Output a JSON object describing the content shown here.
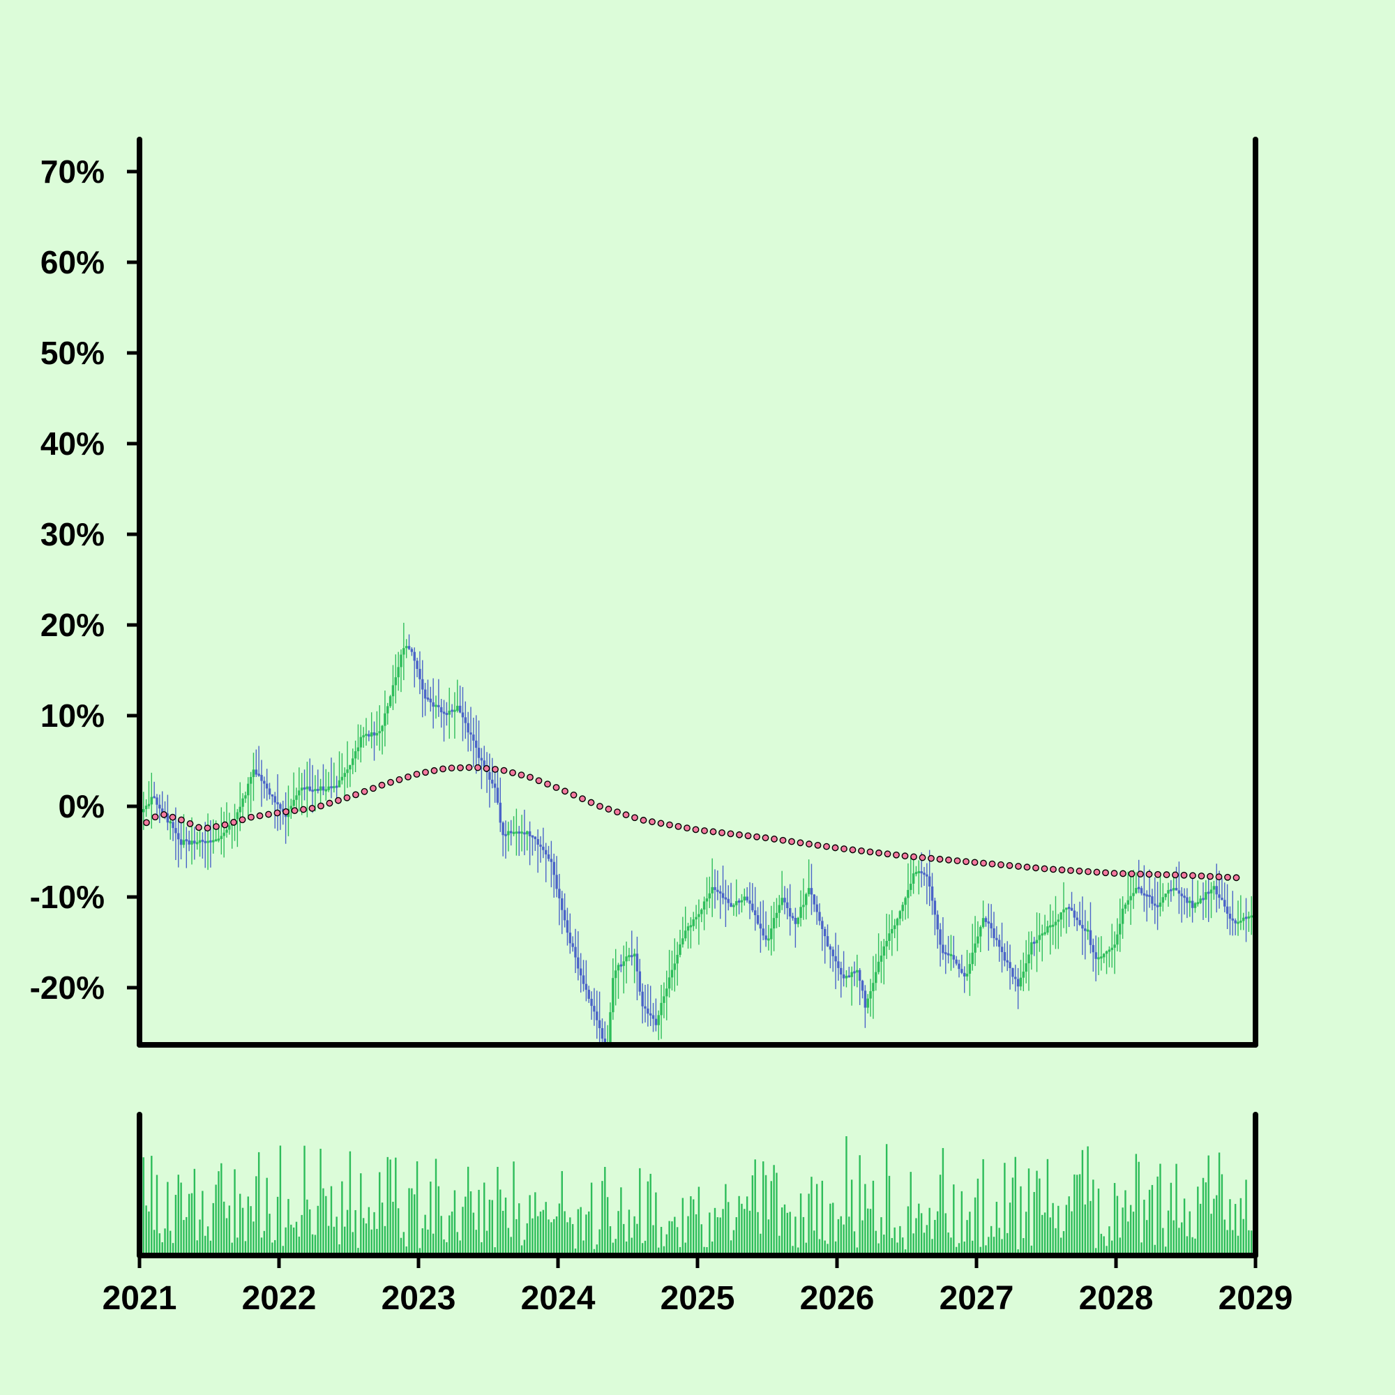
{
  "chart_data": {
    "type": "candlestick",
    "title": "",
    "xlabel": "",
    "ylabel": "",
    "y_unit": "%",
    "ylim": [
      -26,
      75
    ],
    "xlim": [
      2021,
      2029
    ],
    "x_tick_labels": [
      "2021",
      "2022",
      "2023",
      "2024",
      "2025",
      "2026",
      "2027",
      "2028",
      "2029"
    ],
    "y_tick_labels": [
      "70%",
      "60%",
      "50%",
      "40%",
      "30%",
      "20%",
      "10%",
      "0%",
      "-10%",
      "-20%"
    ],
    "grid": false,
    "legend": "none",
    "colors": {
      "background": "#dcfcd9",
      "up": "#2dbd5a",
      "down": "#4a63c8",
      "trend_fill": "#f47aa0",
      "trend_stroke": "#000000",
      "axis": "#000000",
      "volume": "#2dbd5a"
    },
    "series": [
      {
        "type": "candlestick",
        "close_path": [
          [
            2021.0,
            -1
          ],
          [
            2021.1,
            1
          ],
          [
            2021.3,
            -4
          ],
          [
            2021.55,
            -4
          ],
          [
            2021.7,
            -1
          ],
          [
            2021.82,
            4
          ],
          [
            2021.95,
            1
          ],
          [
            2022.05,
            -1
          ],
          [
            2022.15,
            2
          ],
          [
            2022.4,
            2
          ],
          [
            2022.5,
            4
          ],
          [
            2022.6,
            8
          ],
          [
            2022.72,
            8
          ],
          [
            2022.85,
            15
          ],
          [
            2022.9,
            18
          ],
          [
            2022.95,
            17
          ],
          [
            2023.05,
            12
          ],
          [
            2023.2,
            10
          ],
          [
            2023.28,
            11
          ],
          [
            2023.45,
            5
          ],
          [
            2023.55,
            2
          ],
          [
            2023.6,
            -3
          ],
          [
            2023.8,
            -3
          ],
          [
            2023.95,
            -6
          ],
          [
            2024.05,
            -13
          ],
          [
            2024.15,
            -18
          ],
          [
            2024.35,
            -27
          ],
          [
            2024.4,
            -18
          ],
          [
            2024.55,
            -16
          ],
          [
            2024.6,
            -22
          ],
          [
            2024.7,
            -24
          ],
          [
            2024.78,
            -20
          ],
          [
            2024.9,
            -14
          ],
          [
            2025.0,
            -12
          ],
          [
            2025.1,
            -9
          ],
          [
            2025.25,
            -11
          ],
          [
            2025.35,
            -10
          ],
          [
            2025.5,
            -15
          ],
          [
            2025.6,
            -10
          ],
          [
            2025.7,
            -13
          ],
          [
            2025.8,
            -9
          ],
          [
            2025.95,
            -16
          ],
          [
            2026.05,
            -19
          ],
          [
            2026.15,
            -18
          ],
          [
            2026.2,
            -22
          ],
          [
            2026.35,
            -15
          ],
          [
            2026.5,
            -10
          ],
          [
            2026.55,
            -7
          ],
          [
            2026.65,
            -8
          ],
          [
            2026.75,
            -16
          ],
          [
            2026.85,
            -17
          ],
          [
            2026.92,
            -19
          ],
          [
            2027.05,
            -12
          ],
          [
            2027.15,
            -15
          ],
          [
            2027.3,
            -20
          ],
          [
            2027.4,
            -15
          ],
          [
            2027.55,
            -13
          ],
          [
            2027.65,
            -11
          ],
          [
            2027.8,
            -14
          ],
          [
            2027.85,
            -17
          ],
          [
            2028.0,
            -15
          ],
          [
            2028.05,
            -11
          ],
          [
            2028.15,
            -9
          ],
          [
            2028.3,
            -11
          ],
          [
            2028.4,
            -9
          ],
          [
            2028.55,
            -11
          ],
          [
            2028.7,
            -9
          ],
          [
            2028.85,
            -13
          ],
          [
            2028.95,
            -12
          ]
        ]
      },
      {
        "type": "line",
        "marker": "dot",
        "points": [
          [
            2021.05,
            -1.8
          ],
          [
            2021.15,
            -0.8
          ],
          [
            2021.3,
            -1.5
          ],
          [
            2021.45,
            -2.5
          ],
          [
            2021.6,
            -2.1
          ],
          [
            2021.8,
            -1.2
          ],
          [
            2022.0,
            -0.7
          ],
          [
            2022.25,
            -0.2
          ],
          [
            2022.5,
            1.0
          ],
          [
            2022.75,
            2.4
          ],
          [
            2023.0,
            3.6
          ],
          [
            2023.2,
            4.2
          ],
          [
            2023.4,
            4.3
          ],
          [
            2023.6,
            4.0
          ],
          [
            2023.8,
            3.2
          ],
          [
            2024.0,
            2.0
          ],
          [
            2024.3,
            0.0
          ],
          [
            2024.6,
            -1.5
          ],
          [
            2025.0,
            -2.6
          ],
          [
            2025.5,
            -3.5
          ],
          [
            2026.0,
            -4.6
          ],
          [
            2026.5,
            -5.5
          ],
          [
            2027.0,
            -6.2
          ],
          [
            2027.5,
            -6.9
          ],
          [
            2028.0,
            -7.4
          ],
          [
            2028.5,
            -7.6
          ],
          [
            2028.9,
            -7.9
          ]
        ]
      },
      {
        "type": "bar",
        "name": "",
        "panel": "volume",
        "volume_range": [
          0.05,
          1.0
        ]
      }
    ]
  }
}
